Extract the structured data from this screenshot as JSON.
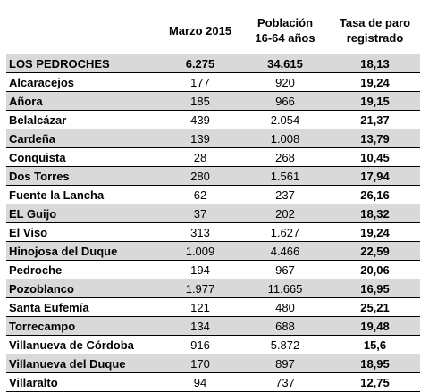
{
  "headers": {
    "col1": "",
    "col2": "Marzo 2015",
    "col3_line1": "Población",
    "col3_line2": "16-64 años",
    "col4_line1": "Tasa de paro",
    "col4_line2": "registrado"
  },
  "rows": [
    {
      "name": "LOS PEDROCHES",
      "marzo": "6.275",
      "poblacion": "34.615",
      "tasa": "18,13"
    },
    {
      "name": "Alcaracejos",
      "marzo": "177",
      "poblacion": "920",
      "tasa": "19,24"
    },
    {
      "name": "Añora",
      "marzo": "185",
      "poblacion": "966",
      "tasa": "19,15"
    },
    {
      "name": "Belalcázar",
      "marzo": "439",
      "poblacion": "2.054",
      "tasa": "21,37"
    },
    {
      "name": "Cardeña",
      "marzo": "139",
      "poblacion": "1.008",
      "tasa": "13,79"
    },
    {
      "name": "Conquista",
      "marzo": "28",
      "poblacion": "268",
      "tasa": "10,45"
    },
    {
      "name": "Dos Torres",
      "marzo": "280",
      "poblacion": "1.561",
      "tasa": "17,94"
    },
    {
      "name": "Fuente la Lancha",
      "marzo": "62",
      "poblacion": "237",
      "tasa": "26,16"
    },
    {
      "name": "EL Guijo",
      "marzo": "37",
      "poblacion": "202",
      "tasa": "18,32"
    },
    {
      "name": "El Viso",
      "marzo": "313",
      "poblacion": "1.627",
      "tasa": "19,24"
    },
    {
      "name": "Hinojosa del Duque",
      "marzo": "1.009",
      "poblacion": "4.466",
      "tasa": "22,59"
    },
    {
      "name": "Pedroche",
      "marzo": "194",
      "poblacion": "967",
      "tasa": "20,06"
    },
    {
      "name": "Pozoblanco",
      "marzo": "1.977",
      "poblacion": "11.665",
      "tasa": "16,95"
    },
    {
      "name": "Santa Eufemía",
      "marzo": "121",
      "poblacion": "480",
      "tasa": "25,21"
    },
    {
      "name": "Torrecampo",
      "marzo": "134",
      "poblacion": "688",
      "tasa": "19,48"
    },
    {
      "name": "Villanueva de Córdoba",
      "marzo": "916",
      "poblacion": "5.872",
      "tasa": "15,6"
    },
    {
      "name": "Villanueva del Duque",
      "marzo": "170",
      "poblacion": "897",
      "tasa": "18,95"
    },
    {
      "name": "Villaralto",
      "marzo": "94",
      "poblacion": "737",
      "tasa": "12,75"
    }
  ],
  "colors": {
    "shade": "#d9d9d9",
    "border": "#000000"
  }
}
